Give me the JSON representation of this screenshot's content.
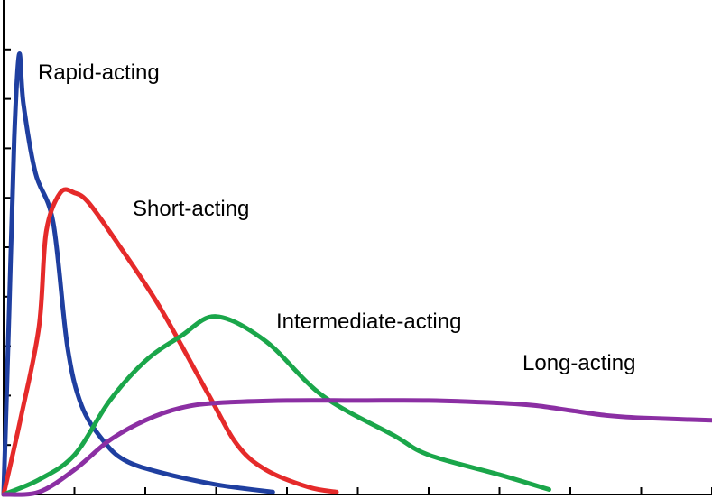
{
  "chart_data": {
    "type": "line",
    "title": "",
    "xlabel": "",
    "ylabel": "",
    "xlim": [
      0,
      10
    ],
    "ylim": [
      0,
      10
    ],
    "x_ticks": [
      0,
      1,
      2,
      3,
      4,
      5,
      6,
      7,
      8,
      9,
      10
    ],
    "y_ticks": [
      0,
      1,
      2,
      3,
      4,
      5,
      6,
      7,
      8,
      9
    ],
    "grid": false,
    "legend": "inline labels",
    "series": [
      {
        "name": "Rapid-acting",
        "color": "#1f3fa0",
        "points": [
          [
            0,
            0
          ],
          [
            0.08,
            3.8
          ],
          [
            0.15,
            7.2
          ],
          [
            0.22,
            8.9
          ],
          [
            0.28,
            7.9
          ],
          [
            0.45,
            6.5
          ],
          [
            0.7,
            5.5
          ],
          [
            0.9,
            3.0
          ],
          [
            1.1,
            1.8
          ],
          [
            1.4,
            1.1
          ],
          [
            1.7,
            0.7
          ],
          [
            2.2,
            0.45
          ],
          [
            3.0,
            0.2
          ],
          [
            3.8,
            0.05
          ]
        ]
      },
      {
        "name": "Short-acting",
        "color": "#e52a2a",
        "points": [
          [
            0,
            0
          ],
          [
            0.25,
            1.6
          ],
          [
            0.5,
            3.4
          ],
          [
            0.6,
            5.3
          ],
          [
            0.8,
            6.1
          ],
          [
            1.0,
            6.1
          ],
          [
            1.2,
            5.9
          ],
          [
            1.6,
            5.1
          ],
          [
            2.2,
            3.8
          ],
          [
            2.9,
            2.0
          ],
          [
            3.3,
            1.0
          ],
          [
            3.7,
            0.5
          ],
          [
            4.3,
            0.15
          ],
          [
            4.7,
            0.05
          ]
        ]
      },
      {
        "name": "Intermediate-acting",
        "color": "#1aa64a",
        "points": [
          [
            0,
            0
          ],
          [
            0.5,
            0.3
          ],
          [
            1.0,
            0.8
          ],
          [
            1.5,
            1.9
          ],
          [
            2.0,
            2.7
          ],
          [
            2.5,
            3.2
          ],
          [
            3.0,
            3.6
          ],
          [
            3.7,
            3.1
          ],
          [
            4.5,
            2.0
          ],
          [
            5.5,
            1.2
          ],
          [
            6.0,
            0.8
          ],
          [
            7.0,
            0.4
          ],
          [
            7.7,
            0.1
          ]
        ]
      },
      {
        "name": "Long-acting",
        "color": "#8b2fa3",
        "points": [
          [
            0,
            0
          ],
          [
            0.5,
            0.05
          ],
          [
            1.0,
            0.5
          ],
          [
            1.5,
            1.1
          ],
          [
            2.0,
            1.5
          ],
          [
            2.5,
            1.75
          ],
          [
            3.0,
            1.85
          ],
          [
            4.0,
            1.9
          ],
          [
            5.0,
            1.9
          ],
          [
            6.0,
            1.9
          ],
          [
            7.0,
            1.85
          ],
          [
            7.5,
            1.8
          ],
          [
            8.0,
            1.7
          ],
          [
            8.5,
            1.6
          ],
          [
            9.0,
            1.55
          ],
          [
            10.0,
            1.5
          ]
        ]
      }
    ]
  }
}
